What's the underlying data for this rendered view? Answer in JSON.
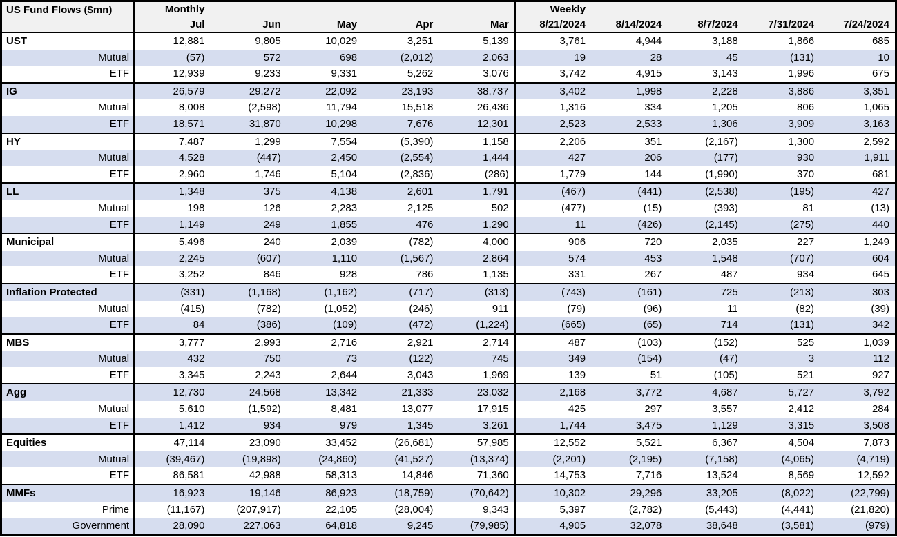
{
  "colors": {
    "stripe": "#d6ddef",
    "header_bg": "#f1f1f1",
    "border": "#000000",
    "text": "#000000"
  },
  "chart_data": {
    "type": "table",
    "title": "US Fund Flows ($mn)",
    "units": "$mn",
    "column_groups": [
      {
        "label": "Monthly",
        "columns": [
          "Jul",
          "Jun",
          "May",
          "Apr",
          "Mar"
        ]
      },
      {
        "label": "Weekly",
        "columns": [
          "8/21/2024",
          "8/14/2024",
          "8/7/2024",
          "7/31/2024",
          "7/24/2024"
        ]
      }
    ],
    "rows": [
      {
        "label": "UST",
        "type": "category",
        "values": [
          "12,881",
          "9,805",
          "10,029",
          "3,251",
          "5,139",
          "3,761",
          "4,944",
          "3,188",
          "1,866",
          "685"
        ]
      },
      {
        "label": "Mutual",
        "type": "sub",
        "values": [
          "(57)",
          "572",
          "698",
          "(2,012)",
          "2,063",
          "19",
          "28",
          "45",
          "(131)",
          "10"
        ]
      },
      {
        "label": "ETF",
        "type": "sub",
        "values": [
          "12,939",
          "9,233",
          "9,331",
          "5,262",
          "3,076",
          "3,742",
          "4,915",
          "3,143",
          "1,996",
          "675"
        ]
      },
      {
        "label": "IG",
        "type": "category",
        "values": [
          "26,579",
          "29,272",
          "22,092",
          "23,193",
          "38,737",
          "3,402",
          "1,998",
          "2,228",
          "3,886",
          "3,351"
        ]
      },
      {
        "label": "Mutual",
        "type": "sub",
        "values": [
          "8,008",
          "(2,598)",
          "11,794",
          "15,518",
          "26,436",
          "1,316",
          "334",
          "1,205",
          "806",
          "1,065"
        ]
      },
      {
        "label": "ETF",
        "type": "sub",
        "values": [
          "18,571",
          "31,870",
          "10,298",
          "7,676",
          "12,301",
          "2,523",
          "2,533",
          "1,306",
          "3,909",
          "3,163"
        ]
      },
      {
        "label": "HY",
        "type": "category",
        "values": [
          "7,487",
          "1,299",
          "7,554",
          "(5,390)",
          "1,158",
          "2,206",
          "351",
          "(2,167)",
          "1,300",
          "2,592"
        ]
      },
      {
        "label": "Mutual",
        "type": "sub",
        "values": [
          "4,528",
          "(447)",
          "2,450",
          "(2,554)",
          "1,444",
          "427",
          "206",
          "(177)",
          "930",
          "1,911"
        ]
      },
      {
        "label": "ETF",
        "type": "sub",
        "values": [
          "2,960",
          "1,746",
          "5,104",
          "(2,836)",
          "(286)",
          "1,779",
          "144",
          "(1,990)",
          "370",
          "681"
        ]
      },
      {
        "label": "LL",
        "type": "category",
        "values": [
          "1,348",
          "375",
          "4,138",
          "2,601",
          "1,791",
          "(467)",
          "(441)",
          "(2,538)",
          "(195)",
          "427"
        ]
      },
      {
        "label": "Mutual",
        "type": "sub",
        "values": [
          "198",
          "126",
          "2,283",
          "2,125",
          "502",
          "(477)",
          "(15)",
          "(393)",
          "81",
          "(13)"
        ]
      },
      {
        "label": "ETF",
        "type": "sub",
        "values": [
          "1,149",
          "249",
          "1,855",
          "476",
          "1,290",
          "11",
          "(426)",
          "(2,145)",
          "(275)",
          "440"
        ]
      },
      {
        "label": "Municipal",
        "type": "category",
        "values": [
          "5,496",
          "240",
          "2,039",
          "(782)",
          "4,000",
          "906",
          "720",
          "2,035",
          "227",
          "1,249"
        ]
      },
      {
        "label": "Mutual",
        "type": "sub",
        "values": [
          "2,245",
          "(607)",
          "1,110",
          "(1,567)",
          "2,864",
          "574",
          "453",
          "1,548",
          "(707)",
          "604"
        ]
      },
      {
        "label": "ETF",
        "type": "sub",
        "values": [
          "3,252",
          "846",
          "928",
          "786",
          "1,135",
          "331",
          "267",
          "487",
          "934",
          "645"
        ]
      },
      {
        "label": "Inflation Protected",
        "type": "category",
        "values": [
          "(331)",
          "(1,168)",
          "(1,162)",
          "(717)",
          "(313)",
          "(743)",
          "(161)",
          "725",
          "(213)",
          "303"
        ]
      },
      {
        "label": "Mutual",
        "type": "sub",
        "values": [
          "(415)",
          "(782)",
          "(1,052)",
          "(246)",
          "911",
          "(79)",
          "(96)",
          "11",
          "(82)",
          "(39)"
        ]
      },
      {
        "label": "ETF",
        "type": "sub",
        "values": [
          "84",
          "(386)",
          "(109)",
          "(472)",
          "(1,224)",
          "(665)",
          "(65)",
          "714",
          "(131)",
          "342"
        ]
      },
      {
        "label": "MBS",
        "type": "category",
        "values": [
          "3,777",
          "2,993",
          "2,716",
          "2,921",
          "2,714",
          "487",
          "(103)",
          "(152)",
          "525",
          "1,039"
        ]
      },
      {
        "label": "Mutual",
        "type": "sub",
        "values": [
          "432",
          "750",
          "73",
          "(122)",
          "745",
          "349",
          "(154)",
          "(47)",
          "3",
          "112"
        ]
      },
      {
        "label": "ETF",
        "type": "sub",
        "values": [
          "3,345",
          "2,243",
          "2,644",
          "3,043",
          "1,969",
          "139",
          "51",
          "(105)",
          "521",
          "927"
        ]
      },
      {
        "label": "Agg",
        "type": "category",
        "values": [
          "12,730",
          "24,568",
          "13,342",
          "21,333",
          "23,032",
          "2,168",
          "3,772",
          "4,687",
          "5,727",
          "3,792"
        ]
      },
      {
        "label": "Mutual",
        "type": "sub",
        "values": [
          "5,610",
          "(1,592)",
          "8,481",
          "13,077",
          "17,915",
          "425",
          "297",
          "3,557",
          "2,412",
          "284"
        ]
      },
      {
        "label": "ETF",
        "type": "sub",
        "values": [
          "1,412",
          "934",
          "979",
          "1,345",
          "3,261",
          "1,744",
          "3,475",
          "1,129",
          "3,315",
          "3,508"
        ]
      },
      {
        "label": "Equities",
        "type": "category",
        "values": [
          "47,114",
          "23,090",
          "33,452",
          "(26,681)",
          "57,985",
          "12,552",
          "5,521",
          "6,367",
          "4,504",
          "7,873"
        ]
      },
      {
        "label": "Mutual",
        "type": "sub",
        "values": [
          "(39,467)",
          "(19,898)",
          "(24,860)",
          "(41,527)",
          "(13,374)",
          "(2,201)",
          "(2,195)",
          "(7,158)",
          "(4,065)",
          "(4,719)"
        ]
      },
      {
        "label": "ETF",
        "type": "sub",
        "values": [
          "86,581",
          "42,988",
          "58,313",
          "14,846",
          "71,360",
          "14,753",
          "7,716",
          "13,524",
          "8,569",
          "12,592"
        ]
      },
      {
        "label": "MMFs",
        "type": "category",
        "values": [
          "16,923",
          "19,146",
          "86,923",
          "(18,759)",
          "(70,642)",
          "10,302",
          "29,296",
          "33,205",
          "(8,022)",
          "(22,799)"
        ]
      },
      {
        "label": "Prime",
        "type": "sub",
        "values": [
          "(11,167)",
          "(207,917)",
          "22,105",
          "(28,004)",
          "9,343",
          "5,397",
          "(2,782)",
          "(5,443)",
          "(4,441)",
          "(21,820)"
        ]
      },
      {
        "label": "Government",
        "type": "sub",
        "values": [
          "28,090",
          "227,063",
          "64,818",
          "9,245",
          "(79,985)",
          "4,905",
          "32,078",
          "38,648",
          "(3,581)",
          "(979)"
        ]
      }
    ]
  }
}
